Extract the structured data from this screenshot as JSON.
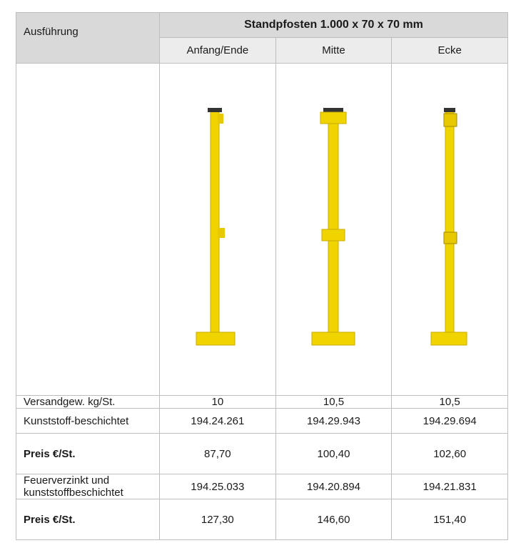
{
  "table": {
    "corner": "Ausführung",
    "group_header": "Standpfosten 1.000 x 70 x 70 mm",
    "columns": [
      "Anfang/Ende",
      "Mitte",
      "Ecke"
    ],
    "rows": [
      {
        "label": "Versandgew. kg/St.",
        "cells": [
          "10",
          "10,5",
          "10,5"
        ]
      },
      {
        "label": "Kunststoff-beschichtet",
        "cells": [
          "194.24.261",
          "194.29.943",
          "194.29.694"
        ]
      },
      {
        "label": "Preis €/St.",
        "cells": [
          "87,70",
          "100,40",
          "102,60"
        ]
      },
      {
        "label": "Feuerverzinkt und kunststoffbeschichtet",
        "cells": [
          "194.25.033",
          "194.20.894",
          "194.21.831"
        ]
      },
      {
        "label": "Preis €/St.",
        "cells": [
          "127,30",
          "146,60",
          "151,40"
        ]
      }
    ]
  }
}
